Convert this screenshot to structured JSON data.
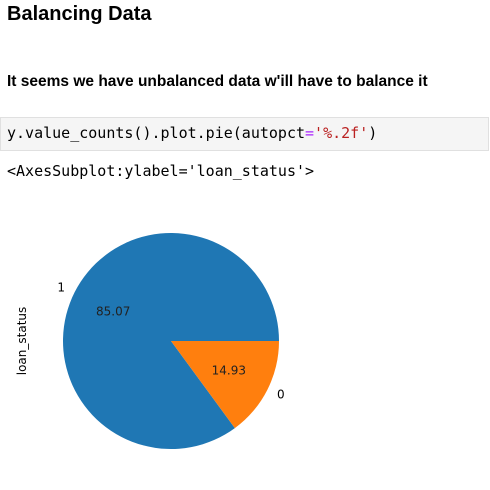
{
  "section_title": "Balancing Data",
  "subtitle": "It seems we have unbalanced data w'ill have to balance it",
  "code_cell": {
    "part1": "y.value_counts().plot.pie(autopct",
    "op": "=",
    "string": "'%.2f'",
    "part2": ")"
  },
  "output_text": "<AxesSubplot:ylabel='loan_status'>",
  "chart_data": {
    "type": "pie",
    "ylabel": "loan_status",
    "slices": [
      {
        "label": "1",
        "value": 85.07,
        "pct_label": "85.07",
        "color": "#1f77b4"
      },
      {
        "label": "0",
        "value": 14.93,
        "pct_label": "14.93",
        "color": "#ff7f0e"
      }
    ]
  }
}
